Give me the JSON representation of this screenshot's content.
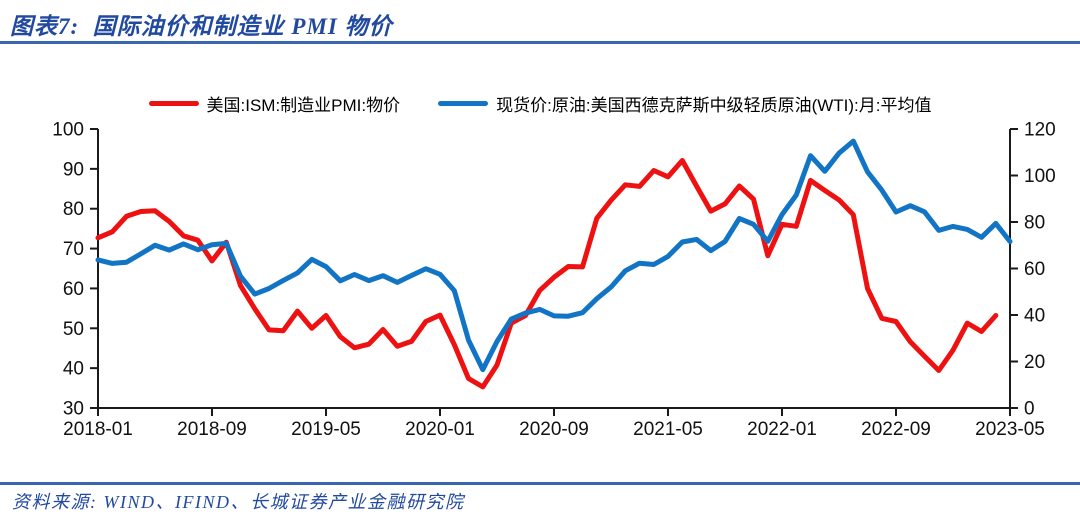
{
  "header": {
    "title": "图表7:  国际油价和制造业 PMI 物价"
  },
  "footer": {
    "source": "资料来源: WIND、IFIND、长城证券产业金融研究院"
  },
  "theme": {
    "title_color": "#2149A0",
    "divider_color": "#3A66B0",
    "axis_color": "#1A1A1A",
    "background": "#FFFFFF",
    "pmi_red": "#EE1111",
    "wti_blue": "#1274C4"
  },
  "chart_data": {
    "type": "line",
    "title": "国际油价和制造业 PMI 物价",
    "x_unit": "month",
    "x_range": [
      "2018-01",
      "2023-05"
    ],
    "x_tick_labels": [
      "2018-01",
      "2018-09",
      "2019-05",
      "2020-01",
      "2020-09",
      "2021-05",
      "2022-01",
      "2022-09",
      "2023-05"
    ],
    "x_tick_step_months": 8,
    "x_total_months": 65,
    "grid": false,
    "legend_position": "top",
    "left_axis": {
      "min": 30,
      "max": 100,
      "ticks": [
        30,
        40,
        50,
        60,
        70,
        80,
        90,
        100
      ]
    },
    "right_axis": {
      "min": 0,
      "max": 120,
      "ticks": [
        0,
        20,
        40,
        60,
        80,
        100,
        120
      ]
    },
    "series": [
      {
        "name": "美国:ISM:制造业PMI:物价",
        "color": "#EE1111",
        "axis": "left",
        "start": "2018-01",
        "end": "2023-04",
        "values": [
          72.7,
          74.2,
          78.1,
          79.3,
          79.5,
          76.8,
          73.2,
          72.1,
          66.9,
          71.6,
          60.7,
          54.9,
          49.6,
          49.4,
          54.3,
          50.0,
          53.2,
          47.9,
          45.1,
          46.0,
          49.7,
          45.5,
          46.7,
          51.7,
          53.3,
          45.9,
          37.4,
          35.3,
          40.8,
          51.3,
          53.2,
          59.5,
          62.8,
          65.5,
          65.4,
          77.6,
          82.1,
          86.0,
          85.6,
          89.6,
          88.0,
          92.1,
          85.7,
          79.4,
          81.2,
          85.7,
          82.4,
          68.2,
          76.1,
          75.6,
          87.1,
          84.6,
          82.2,
          78.5,
          60.0,
          52.5,
          51.7,
          46.6,
          43.0,
          39.4,
          44.5,
          51.3,
          49.2,
          53.2
        ]
      },
      {
        "name": "现货价:原油:美国西德克萨斯中级轻质原油(WTI):月:平均值",
        "color": "#1274C4",
        "axis": "right",
        "start": "2018-01",
        "end": "2023-05",
        "values": [
          63.7,
          62.2,
          62.7,
          66.3,
          70.0,
          67.9,
          70.6,
          68.1,
          70.2,
          70.8,
          56.7,
          49.0,
          51.4,
          54.9,
          58.1,
          63.9,
          60.8,
          54.7,
          57.4,
          54.8,
          56.9,
          54.0,
          57.0,
          59.9,
          57.5,
          50.5,
          29.2,
          16.5,
          28.6,
          38.3,
          40.8,
          42.4,
          39.6,
          39.5,
          41.0,
          47.0,
          52.0,
          59.0,
          62.3,
          61.7,
          65.2,
          71.4,
          72.5,
          67.7,
          71.6,
          81.5,
          79.0,
          71.7,
          83.2,
          91.6,
          108.5,
          101.8,
          109.6,
          114.8,
          101.6,
          93.7,
          84.3,
          87.0,
          84.4,
          76.4,
          78.1,
          76.8,
          73.4,
          79.4,
          71.6
        ]
      }
    ]
  }
}
